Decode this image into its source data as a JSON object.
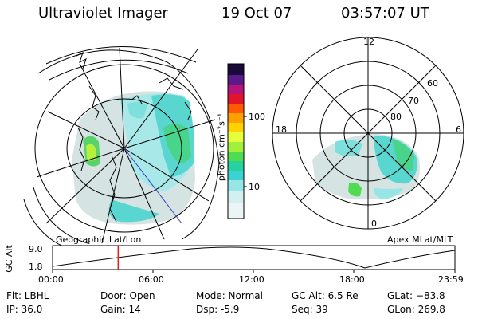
{
  "header": {
    "instrument": "Ultraviolet Imager",
    "date": "19 Oct 07",
    "time": "03:57:07 UT"
  },
  "colorbar": {
    "unit_label": "photon cm⁻²s⁻¹",
    "ticks": [
      "100",
      "10"
    ],
    "colors": [
      "#1a0a3a",
      "#5a1a8a",
      "#b4147a",
      "#e0142a",
      "#ff5a00",
      "#ffa000",
      "#ffd200",
      "#e6ff3c",
      "#a0f03c",
      "#50dc50",
      "#28d2a0",
      "#3cd2d2",
      "#96e6e6",
      "#d2f0f0",
      "#ebf5f5"
    ]
  },
  "left_map": {
    "projection_label": "Geographic Lat/Lon"
  },
  "right_map": {
    "projection_label": "Apex MLat/MLT",
    "hour_labels": [
      "12",
      "18",
      "6",
      "0"
    ],
    "lat_labels": [
      "60",
      "70",
      "80"
    ]
  },
  "altitude_plot": {
    "ylabel": "GC Alt",
    "y_ticks": [
      "9.0",
      "1.8"
    ],
    "x_ticks": [
      "00:00",
      "06:00",
      "12:00",
      "18:00",
      "23:59"
    ],
    "current_time_fraction": 0.163
  },
  "status": {
    "filter": "Flt: LBHL",
    "ip": "IP: 36.0",
    "door": "Door: Open",
    "gain": "Gain: 14",
    "mode": "Mode: Normal",
    "dsp": "Dsp:    -5.9",
    "gc_alt": "GC Alt: 6.5 Re",
    "seq": "Seq: 39",
    "glat": "GLat: −83.8",
    "glon": "GLon: 269.8"
  }
}
